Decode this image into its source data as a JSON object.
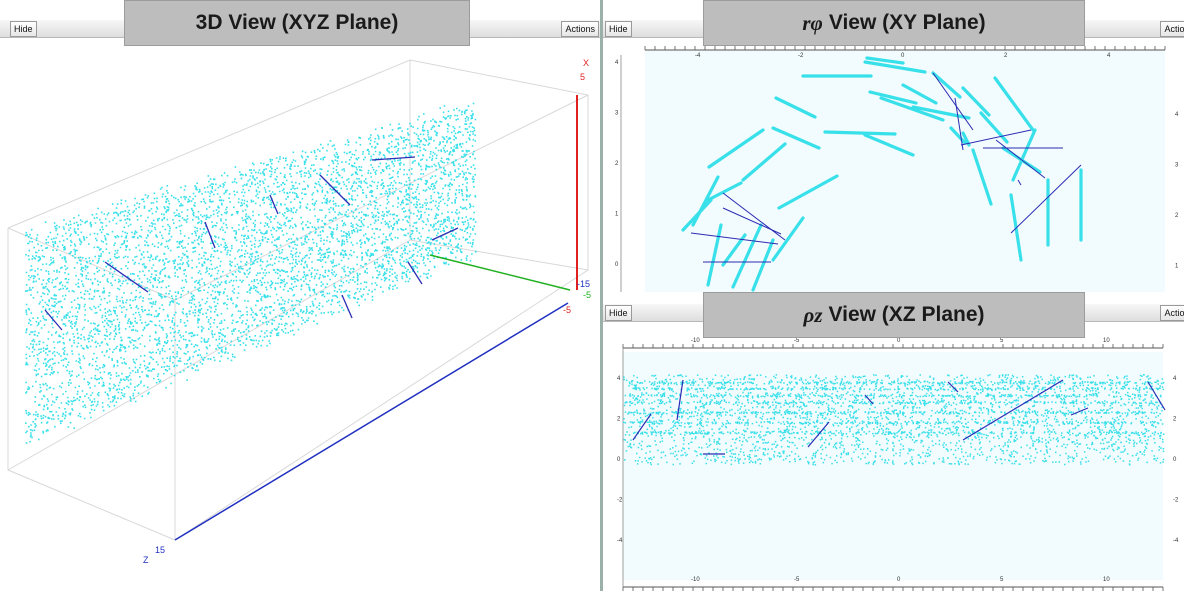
{
  "panels": {
    "view3d": {
      "hide_label": "Hide",
      "actions_label": "Actions",
      "title": "3D View (XYZ Plane)",
      "axis_labels": {
        "x": "X",
        "x_val": "5",
        "y_neg": "-15",
        "y_val": "-5",
        "z_neg": "-5",
        "z": "Z",
        "z_val": "15"
      }
    },
    "rphi": {
      "hide_label": "Hide",
      "actions_label": "Actions",
      "title_symbol": "rφ",
      "title_text": "View (XY Plane)",
      "x_ticks": [
        "-4",
        "-2",
        "0",
        "2",
        "4"
      ],
      "y_ticks": [
        "4",
        "3",
        "2",
        "1",
        "0"
      ]
    },
    "rhoz": {
      "hide_label": "Hide",
      "actions_label": "Actions",
      "title_symbol": "ρz",
      "title_text": "View (XZ Plane)",
      "x_ticks": [
        "-10",
        "-5",
        "0",
        "5",
        "10"
      ],
      "y_ticks": [
        "4",
        "2",
        "0",
        "-2",
        "-4"
      ]
    }
  },
  "colors": {
    "hits": "#38e0ea",
    "tracks": "#2c2cb4",
    "plot_bg": "#f2fbfd",
    "axis_x": "#e02020",
    "axis_y": "#20b020",
    "axis_z": "#2030c0"
  }
}
